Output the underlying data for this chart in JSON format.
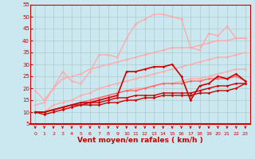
{
  "background_color": "#cbe8f0",
  "grid_color": "#aacccc",
  "xlabel": "Vent moyen/en rafales ( km/h )",
  "xlabel_color": "#cc0000",
  "xlabel_fontsize": 6.5,
  "xtick_color": "#cc0000",
  "ytick_color": "#cc0000",
  "xlim": [
    -0.5,
    23.5
  ],
  "ylim": [
    5,
    55
  ],
  "yticks": [
    5,
    10,
    15,
    20,
    25,
    30,
    35,
    40,
    45,
    50,
    55
  ],
  "xticks": [
    0,
    1,
    2,
    3,
    4,
    5,
    6,
    7,
    8,
    9,
    10,
    11,
    12,
    13,
    14,
    15,
    16,
    17,
    18,
    19,
    20,
    21,
    22,
    23
  ],
  "lines": [
    {
      "x": [
        0,
        1,
        2,
        3,
        4,
        5,
        6,
        7,
        8,
        9,
        10,
        11,
        12,
        13,
        14,
        15,
        16,
        17,
        18,
        19,
        20,
        21,
        22,
        23
      ],
      "y": [
        19,
        15,
        20,
        27,
        23,
        22,
        27,
        34,
        34,
        33,
        41,
        47,
        49,
        51,
        51,
        50,
        49,
        37,
        36,
        43,
        42,
        46,
        41,
        41
      ],
      "color": "#ffaaaa",
      "lw": 1.0
    },
    {
      "x": [
        0,
        1,
        2,
        3,
        4,
        5,
        6,
        7,
        8,
        9,
        10,
        11,
        12,
        13,
        14,
        15,
        16,
        17,
        18,
        19,
        20,
        21,
        22,
        23
      ],
      "y": [
        13,
        14,
        20,
        24,
        25,
        26,
        28,
        29,
        30,
        31,
        32,
        33,
        34,
        35,
        36,
        37,
        37,
        37,
        38,
        39,
        40,
        40,
        41,
        41
      ],
      "color": "#ffaaaa",
      "lw": 1.0
    },
    {
      "x": [
        0,
        1,
        2,
        3,
        4,
        5,
        6,
        7,
        8,
        9,
        10,
        11,
        12,
        13,
        14,
        15,
        16,
        17,
        18,
        19,
        20,
        21,
        22,
        23
      ],
      "y": [
        10,
        10,
        13,
        14,
        15,
        17,
        18,
        20,
        21,
        22,
        23,
        24,
        25,
        26,
        27,
        28,
        29,
        30,
        31,
        32,
        33,
        33,
        34,
        35
      ],
      "color": "#ffaaaa",
      "lw": 1.0
    },
    {
      "x": [
        0,
        1,
        2,
        3,
        4,
        5,
        6,
        7,
        8,
        9,
        10,
        11,
        12,
        13,
        14,
        15,
        16,
        17,
        18,
        19,
        20,
        21,
        22,
        23
      ],
      "y": [
        10,
        10,
        11,
        12,
        13,
        14,
        15,
        16,
        17,
        18,
        19,
        20,
        20,
        21,
        22,
        22,
        23,
        24,
        24,
        25,
        26,
        27,
        28,
        28
      ],
      "color": "#ffaaaa",
      "lw": 1.0
    },
    {
      "x": [
        0,
        1,
        2,
        3,
        4,
        5,
        6,
        7,
        8,
        9,
        10,
        11,
        12,
        13,
        14,
        15,
        16,
        17,
        18,
        19,
        20,
        21,
        22,
        23
      ],
      "y": [
        10,
        10,
        11,
        12,
        13,
        14,
        15,
        16,
        17,
        18,
        19,
        19,
        20,
        21,
        22,
        22,
        22,
        23,
        23,
        24,
        24,
        24,
        25,
        23
      ],
      "color": "#ff6666",
      "lw": 1.0
    },
    {
      "x": [
        0,
        1,
        2,
        3,
        4,
        5,
        6,
        7,
        8,
        9,
        10,
        11,
        12,
        13,
        14,
        15,
        16,
        17,
        18,
        19,
        20,
        21,
        22,
        23
      ],
      "y": [
        10,
        10,
        11,
        12,
        13,
        14,
        14,
        15,
        16,
        17,
        27,
        27,
        28,
        29,
        29,
        30,
        25,
        15,
        21,
        22,
        25,
        24,
        26,
        23
      ],
      "color": "#cc0000",
      "lw": 1.2
    },
    {
      "x": [
        0,
        1,
        2,
        3,
        4,
        5,
        6,
        7,
        8,
        9,
        10,
        11,
        12,
        13,
        14,
        15,
        16,
        17,
        18,
        19,
        20,
        21,
        22,
        23
      ],
      "y": [
        10,
        10,
        11,
        12,
        13,
        13,
        14,
        14,
        15,
        16,
        16,
        17,
        17,
        17,
        18,
        18,
        18,
        18,
        19,
        20,
        21,
        21,
        22,
        22
      ],
      "color": "#cc0000",
      "lw": 1.0
    },
    {
      "x": [
        0,
        1,
        2,
        3,
        4,
        5,
        6,
        7,
        8,
        9,
        10,
        11,
        12,
        13,
        14,
        15,
        16,
        17,
        18,
        19,
        20,
        21,
        22,
        23
      ],
      "y": [
        10,
        9,
        10,
        11,
        12,
        13,
        13,
        13,
        14,
        14,
        15,
        15,
        16,
        16,
        17,
        17,
        17,
        17,
        18,
        18,
        19,
        19,
        20,
        22
      ],
      "color": "#cc0000",
      "lw": 1.0
    }
  ]
}
